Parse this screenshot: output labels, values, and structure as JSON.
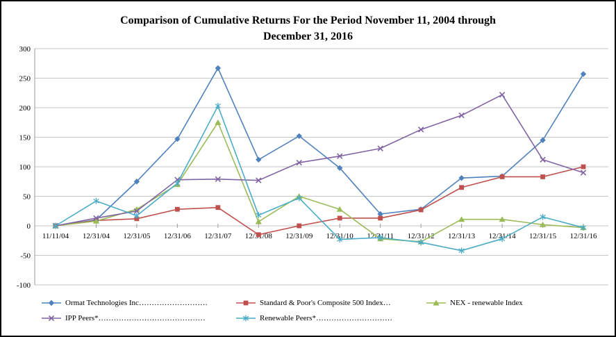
{
  "chart_data": {
    "type": "line",
    "title": "Comparison of Cumulative Returns For the Period November 11, 2004 through December 31, 2016",
    "title_lines": [
      "Comparison of Cumulative Returns For the Period November 11, 2004 through",
      "December 31, 2016"
    ],
    "categories": [
      "11/11/04",
      "12/31/04",
      "12/31/05",
      "12/31/06",
      "12/31/07",
      "12/31/08",
      "12/31/09",
      "12/31/10",
      "12/31/11",
      "12/31/12",
      "12/31/13",
      "12/31/14",
      "12/31/15",
      "12/31/16"
    ],
    "ylim": [
      -100,
      300
    ],
    "y_tick_interval": 50,
    "grid": "horizontal",
    "legend_position": "bottom",
    "gridline_color": "#c6c6c6",
    "axis_color": "#9a9a9a",
    "series": [
      {
        "name": "Ormat Technologies Inc",
        "legend_label": "Ormat Technologies Inc………………………",
        "color": "#4F81BD",
        "marker": "diamond",
        "values": [
          0,
          10,
          75,
          147,
          267,
          112,
          152,
          98,
          20,
          28,
          81,
          84,
          145,
          257
        ]
      },
      {
        "name": "Standard & Poor's Composite 500 Index",
        "legend_label": "Standard & Poor's Composite 500 Index…",
        "color": "#C0504D",
        "marker": "square",
        "values": [
          0,
          9,
          12,
          28,
          31,
          -15,
          0,
          13,
          13,
          27,
          65,
          83,
          83,
          100
        ]
      },
      {
        "name": "NEX - renewable Index",
        "legend_label": "NEX - renewable Index",
        "color": "#9BBB59",
        "marker": "triangle",
        "values": [
          0,
          8,
          28,
          70,
          175,
          7,
          50,
          28,
          -22,
          -27,
          11,
          11,
          2,
          -3
        ]
      },
      {
        "name": "IPP Peers*",
        "legend_label": "IPP Peers*……………………………………",
        "color": "#8064A2",
        "marker": "x",
        "values": [
          0,
          13,
          25,
          78,
          79,
          77,
          107,
          118,
          131,
          163,
          187,
          222,
          112,
          90
        ]
      },
      {
        "name": "Renewable Peers*",
        "legend_label": "Renewable Peers*…………………………",
        "color": "#4BACC6",
        "marker": "asterisk",
        "values": [
          0,
          42,
          17,
          72,
          203,
          18,
          47,
          -23,
          -20,
          -28,
          -42,
          -22,
          15,
          -3
        ]
      }
    ]
  }
}
